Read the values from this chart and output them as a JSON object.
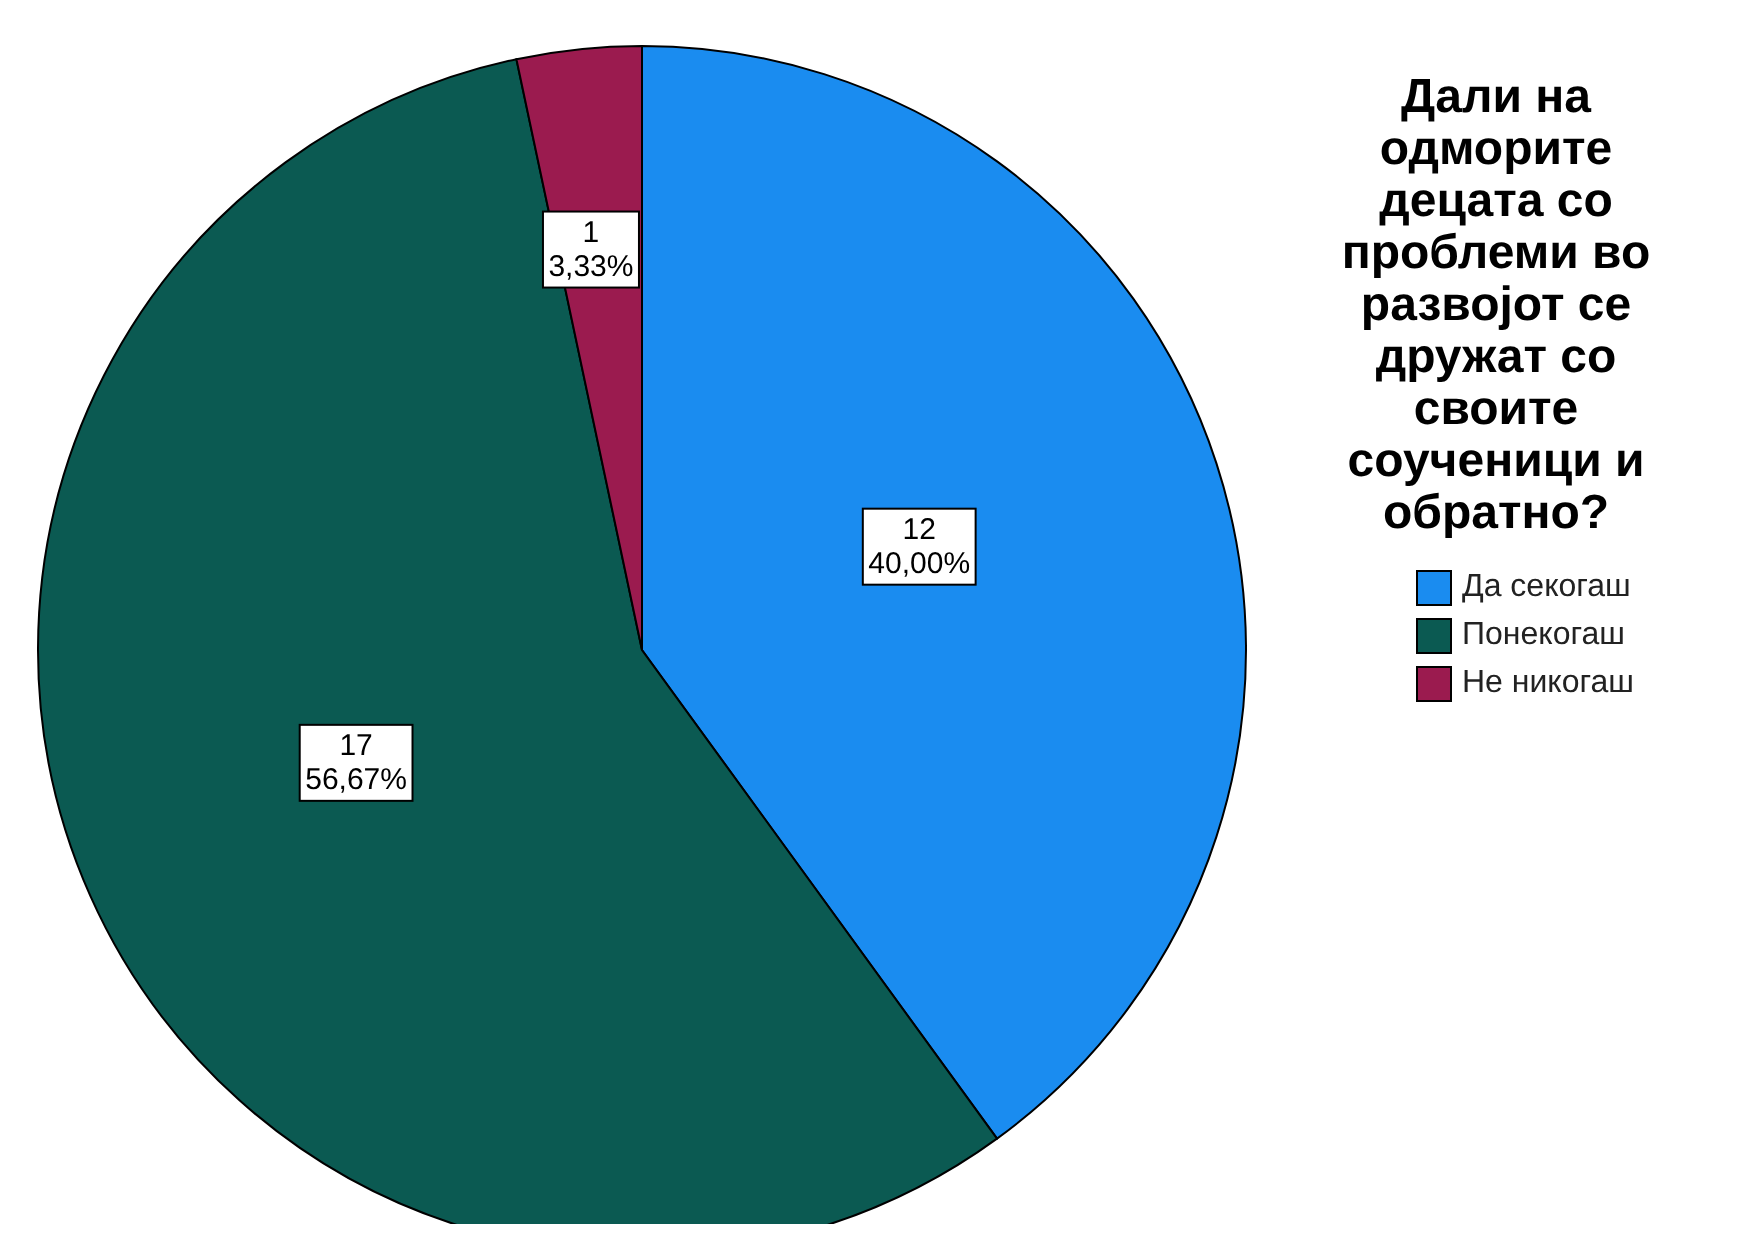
{
  "chart_data": {
    "type": "pie",
    "legend_title": "Дали на одморите децата со проблеми во развојот се дружат со своите соученици и обратно?",
    "categories": [
      "Да секогаш",
      "Понекогаш",
      "Не никогаш"
    ],
    "values": [
      12,
      17,
      1
    ],
    "colors": [
      "#1a8cf0",
      "#0b5a52",
      "#9b1b4f"
    ],
    "value_labels": [
      "12\n40,00%",
      "17\n56,67%",
      "1\n3,33%"
    ],
    "legend": "right"
  }
}
